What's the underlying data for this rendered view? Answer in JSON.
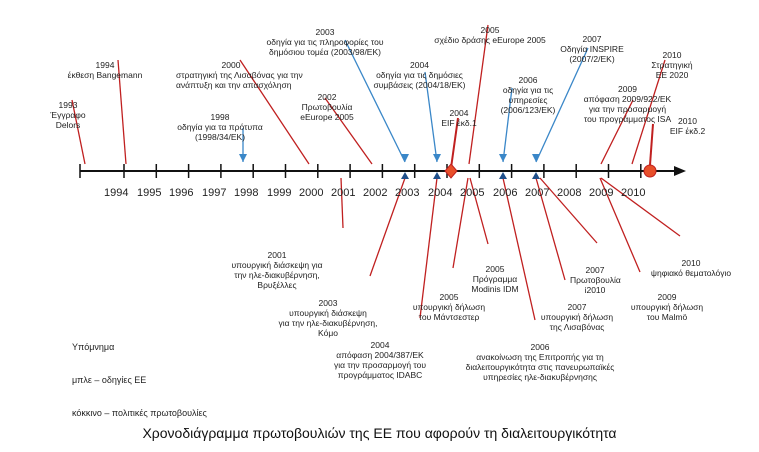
{
  "years": [
    "1994",
    "1995",
    "1996",
    "1997",
    "1998",
    "1999",
    "2000",
    "2001",
    "2002",
    "2003",
    "2004",
    "2005",
    "2006",
    "2007",
    "2008",
    "2009",
    "2010"
  ],
  "top_labels": [
    {
      "id": "t1993",
      "year": "1993",
      "text": "Έγγραφο\nDelors"
    },
    {
      "id": "t1994",
      "year": "1994",
      "text": "έκθεση Bangemann"
    },
    {
      "id": "t1998",
      "year": "1998",
      "text": "οδηγία για τα πρότυπα\n(1998/34/ΕΚ)"
    },
    {
      "id": "t2000",
      "year": "2000",
      "text": "στρατηγική της Λισαβόνας για την\nανάπτυξη και την απασχόληση"
    },
    {
      "id": "t2002",
      "year": "2002",
      "text": "Πρωτοβουλία\neEurope 2005"
    },
    {
      "id": "t2003",
      "year": "2003",
      "text": "οδηγία για τις πληροφορίες του\nδημόσιου τομέα (2003/98/ΕΚ)"
    },
    {
      "id": "t2004a",
      "year": "2004",
      "text": "οδηγία για τις δημόσιες\nσυμβάσεις (2004/18/ΕΚ)"
    },
    {
      "id": "t2004b",
      "year": "2004",
      "text": "EIF έκδ.1"
    },
    {
      "id": "t2005",
      "year": "2005",
      "text": "σχέδιο δράσης eEurope 2005"
    },
    {
      "id": "t2006",
      "year": "2006",
      "text": "οδηγία για τις\nυπηρεσίες\n(2006/123/ΕΚ)"
    },
    {
      "id": "t2007",
      "year": "2007",
      "text": "Οδηγία INSPIRE\n(2007/2/ΕΚ)"
    },
    {
      "id": "t2009",
      "year": "2009",
      "text": "απόφαση 2009/922/ΕΚ\nγια την προσαρμογή\nτου προγράμματος ISA"
    },
    {
      "id": "t2010a",
      "year": "2010",
      "text": "Στρατηγική\nΕΕ 2020"
    },
    {
      "id": "t2010b",
      "year": "2010",
      "text": "EIF έκδ.2"
    }
  ],
  "bottom_labels": [
    {
      "id": "b2001",
      "year": "2001",
      "text": "υπουργική διάσκεψη για\nτην ηλε-διακυβέρνηση,\nΒρυξέλλες"
    },
    {
      "id": "b2003",
      "year": "2003",
      "text": "υπουργική διάσκεψη\nγια την ηλε-διακυβέρνηση,\nΚόμο"
    },
    {
      "id": "b2004",
      "year": "2004",
      "text": "απόφαση 2004/387/ΕΚ\nγια την προσαρμογή του\nπρογράμματος IDABC"
    },
    {
      "id": "b2005a",
      "year": "2005",
      "text": "υπουργική δήλωση\nτου Μάντσεστερ"
    },
    {
      "id": "b2005b",
      "year": "2005",
      "text": "Πρόγραμμα\nModinis IDM"
    },
    {
      "id": "b2006",
      "year": "2006",
      "text": "ανακοίνωση της Επιτροπής για τη\nδιαλειτουργικότητα στις πανευρωπαϊκές\nυπηρεσίες ηλε-διακυβέρνησης"
    },
    {
      "id": "b2007a",
      "year": "2007",
      "text": "υπουργική δήλωση\nτης Λισαβόνας"
    },
    {
      "id": "b2007b",
      "year": "2007",
      "text": "Πρωτοβουλία\ni2010"
    },
    {
      "id": "b2009",
      "year": "2009",
      "text": "υπουργική δήλωση\nτου Malmö"
    },
    {
      "id": "b2010",
      "year": "2010",
      "text": "ψηφιακό θεματολόγιο"
    }
  ],
  "legend": {
    "title": "Υπόμνημα",
    "line1": "μπλε – οδηγίες ΕΕ",
    "line2": "κόκκινο – πολιτικές πρωτοβουλίες"
  },
  "caption": "Χρονοδιάγραμμα πρωτοβουλιών της ΕΕ που αφορούν τη διαλειτουργικότητα",
  "colors": {
    "blue": "#3a87c8",
    "red": "#c02020",
    "axis": "#111111",
    "marker": "#e8502a"
  }
}
